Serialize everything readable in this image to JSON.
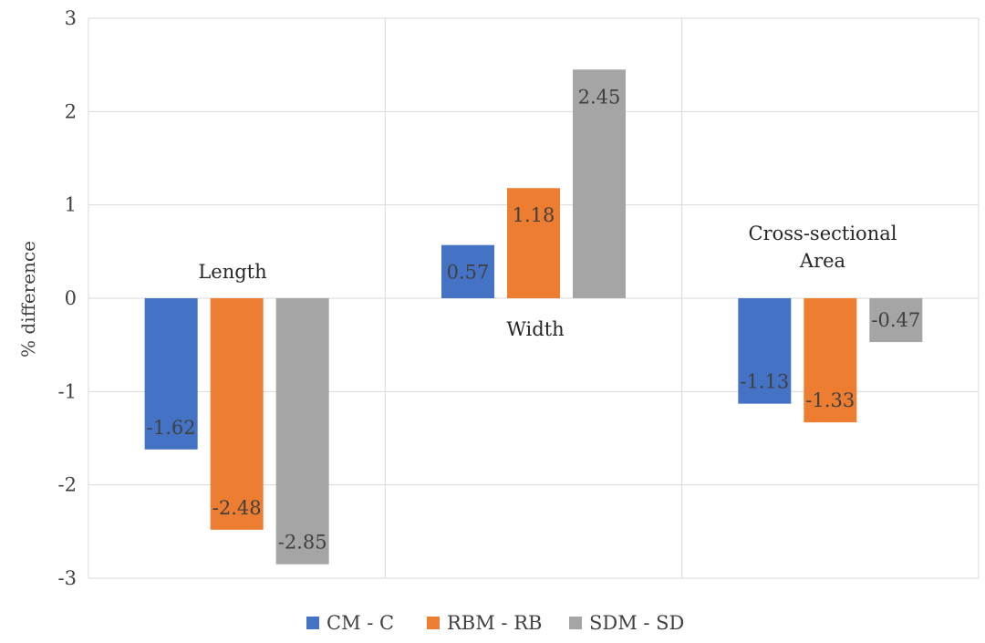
{
  "chart_data": {
    "type": "bar",
    "categories": [
      "Length",
      "Width",
      "Cross-sectional Area"
    ],
    "category_label_lines": [
      [
        "Length"
      ],
      [
        "Width"
      ],
      [
        "Cross-sectional",
        "Area"
      ]
    ],
    "series": [
      {
        "name": "CM - C",
        "color": "#4472C4",
        "values": [
          -1.62,
          0.57,
          -1.13
        ]
      },
      {
        "name": "RBM - RB",
        "color": "#ED7D31",
        "values": [
          -2.48,
          1.18,
          -1.33
        ]
      },
      {
        "name": "SDM - SD",
        "color": "#A5A5A5",
        "values": [
          -2.85,
          2.45,
          -0.47
        ]
      }
    ],
    "data_labels": [
      [
        "-1.62",
        "0.57",
        "-1.13"
      ],
      [
        "-2.48",
        "1.18",
        "-1.33"
      ],
      [
        "-2.85",
        "2.45",
        "-0.47"
      ]
    ],
    "yticks": [
      "3",
      "2",
      "1",
      "0",
      "-1",
      "-2",
      "-3"
    ],
    "ytick_values": [
      3,
      2,
      1,
      0,
      -1,
      -2,
      -3
    ],
    "ylabel": "% difference",
    "xlabel": "",
    "ylim": [
      -3,
      3
    ],
    "grid": true,
    "legend_position": "bottom"
  }
}
